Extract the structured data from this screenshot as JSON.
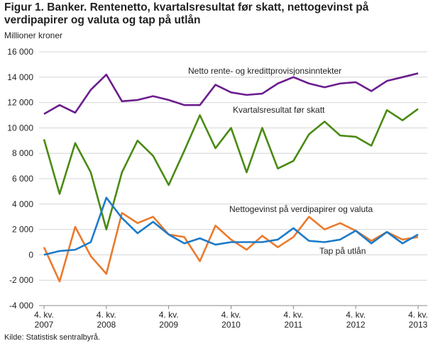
{
  "chart_data": {
    "type": "line",
    "title": "Figur 1. Banker. Rentenetto, kvartalsresultat før skatt, nettogevinst på verdipapirer og valuta og tap på utlån",
    "subtitle": "Millioner kroner",
    "source": "Kilde: Statistisk sentralbyrå.",
    "categories": [
      "4. kv. 2007",
      null,
      null,
      null,
      "4. kv. 2008",
      null,
      null,
      null,
      "4. kv. 2009",
      null,
      null,
      null,
      "4. kv. 2010",
      null,
      null,
      null,
      "4. kv. 2011",
      null,
      null,
      null,
      "4. kv. 2012",
      null,
      null,
      null,
      "4. kv. 2013"
    ],
    "series": [
      {
        "name": "Netto rente- og kredittprovisjonsinntekter",
        "color": "#6b1d8e",
        "values": [
          11100,
          11800,
          11200,
          13000,
          14200,
          12100,
          12200,
          12500,
          12200,
          11800,
          11800,
          13400,
          12800,
          12600,
          12700,
          13500,
          14000,
          13500,
          13200,
          13500,
          13600,
          12900,
          13700,
          14000,
          14300
        ]
      },
      {
        "name": "Kvartalsresultat før skatt",
        "color": "#4a8a12",
        "values": [
          9100,
          4800,
          8800,
          6500,
          2000,
          6500,
          9000,
          7800,
          5500,
          8200,
          11000,
          8400,
          10000,
          6500,
          10000,
          6800,
          7400,
          9500,
          10500,
          9400,
          9300,
          8600,
          11400,
          10600,
          11500
        ]
      },
      {
        "name": "Nettogevinst på verdipapirer og valuta",
        "color": "#ea7a2c",
        "values": [
          600,
          -2100,
          2200,
          -100,
          -1500,
          3300,
          2500,
          3000,
          1600,
          1400,
          -500,
          2300,
          1200,
          400,
          1500,
          600,
          1400,
          3000,
          2000,
          2500,
          1900,
          1100,
          1800,
          1200,
          1400
        ]
      },
      {
        "name": "Tap på utlån",
        "color": "#1b7bc9",
        "values": [
          0,
          300,
          400,
          1000,
          4500,
          2900,
          1700,
          2600,
          1600,
          900,
          1300,
          800,
          1000,
          1000,
          1000,
          1200,
          2100,
          1100,
          1000,
          1200,
          1900,
          900,
          1800,
          900,
          1600
        ]
      }
    ],
    "ylim": [
      -4000,
      16000
    ],
    "yticks": [
      {
        "value": -4000,
        "label": "-4 000"
      },
      {
        "value": -2000,
        "label": "-2 000"
      },
      0,
      {
        "value": 2000,
        "label": "2 000"
      },
      {
        "value": 4000,
        "label": "4 000"
      },
      {
        "value": 6000,
        "label": "6 000"
      },
      {
        "value": 8000,
        "label": "8 000"
      },
      {
        "value": 10000,
        "label": "10 000"
      },
      {
        "value": 12000,
        "label": "12 000"
      },
      {
        "value": 14000,
        "label": "14 000"
      },
      {
        "value": 16000,
        "label": "16 000"
      }
    ],
    "grid": true
  }
}
